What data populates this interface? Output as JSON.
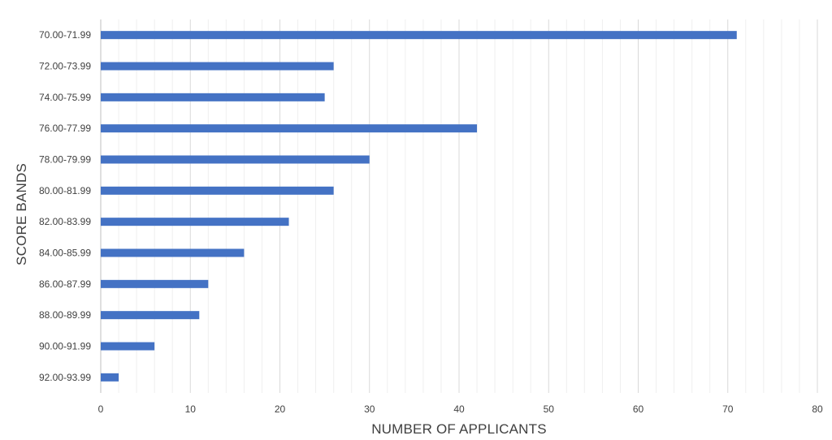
{
  "chart_data": {
    "type": "bar",
    "orientation": "horizontal",
    "title": "",
    "xlabel": "NUMBER OF APPLICANTS",
    "ylabel": "SCORE BANDS",
    "categories": [
      "70.00-71.99",
      "72.00-73.99",
      "74.00-75.99",
      "76.00-77.99",
      "78.00-79.99",
      "80.00-81.99",
      "82.00-83.99",
      "84.00-85.99",
      "86.00-87.99",
      "88.00-89.99",
      "90.00-91.99",
      "92.00-93.99"
    ],
    "series": [
      {
        "values": [
          71,
          26,
          25,
          42,
          30,
          26,
          21,
          16,
          12,
          11,
          6,
          2
        ]
      }
    ],
    "xlim": [
      0,
      80
    ],
    "xticks": [
      "0",
      "10",
      "20",
      "30",
      "40",
      "50",
      "60",
      "70",
      "80"
    ],
    "grid": {
      "major": true,
      "minor": true,
      "minor_step": 2
    },
    "legend": "none",
    "colors": {
      "bar": "#4472C4",
      "major_grid": "#d9d9d9",
      "minor_grid": "#efefef",
      "axis": "#bfbfbf",
      "text": "#404040"
    }
  }
}
